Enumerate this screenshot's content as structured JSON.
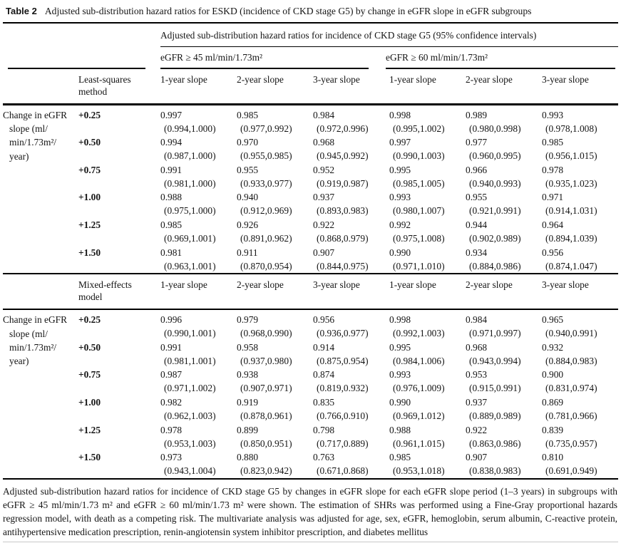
{
  "caption": {
    "label": "Table 2",
    "title": "Adjusted sub-distribution hazard ratios for ESKD (incidence of CKD stage G5) by change in eGFR slope in eGFR subgroups"
  },
  "spanner": "Adjusted sub-distribution hazard ratios for incidence of CKD stage G5 (95% confidence intervals)",
  "groups": [
    {
      "label": "eGFR ≥ 45 ml/min/1.73m²"
    },
    {
      "label": "eGFR ≥ 60 ml/min/1.73m²"
    }
  ],
  "row_label_lines": [
    "Change in eGFR",
    "slope (ml/",
    "min/1.73m²/",
    "year)"
  ],
  "sections": [
    {
      "method": "Least-squares method",
      "slope_headers": [
        "1-year slope",
        "2-year slope",
        "3-year slope",
        "1-year slope",
        "2-year slope",
        "3-year slope"
      ],
      "rows": [
        {
          "slope": "+0.25",
          "cells": [
            [
              "0.997",
              "(0.994,1.000)"
            ],
            [
              "0.985",
              "(0.977,0.992)"
            ],
            [
              "0.984",
              "(0.972,0.996)"
            ],
            [
              "0.998",
              "(0.995,1.002)"
            ],
            [
              "0.989",
              "(0.980,0.998)"
            ],
            [
              "0.993",
              "(0.978,1.008)"
            ]
          ]
        },
        {
          "slope": "+0.50",
          "cells": [
            [
              "0.994",
              "(0.987,1.000)"
            ],
            [
              "0.970",
              "(0.955,0.985)"
            ],
            [
              "0.968",
              "(0.945,0.992)"
            ],
            [
              "0.997",
              "(0.990,1.003)"
            ],
            [
              "0.977",
              "(0.960,0.995)"
            ],
            [
              "0.985",
              "(0.956,1.015)"
            ]
          ]
        },
        {
          "slope": "+0.75",
          "cells": [
            [
              "0.991",
              "(0.981,1.000)"
            ],
            [
              "0.955",
              "(0.933,0.977)"
            ],
            [
              "0.952",
              "(0.919,0.987)"
            ],
            [
              "0.995",
              "(0.985,1.005)"
            ],
            [
              "0.966",
              "(0.940,0.993)"
            ],
            [
              "0.978",
              "(0.935,1.023)"
            ]
          ]
        },
        {
          "slope": "+1.00",
          "cells": [
            [
              "0.988",
              "(0.975,1.000)"
            ],
            [
              "0.940",
              "(0.912,0.969)"
            ],
            [
              "0.937",
              "(0.893,0.983)"
            ],
            [
              "0.993",
              "(0.980,1.007)"
            ],
            [
              "0.955",
              "(0.921,0.991)"
            ],
            [
              "0.971",
              "(0.914,1.031)"
            ]
          ]
        },
        {
          "slope": "+1.25",
          "cells": [
            [
              "0.985",
              "(0.969,1.001)"
            ],
            [
              "0.926",
              "(0.891,0.962)"
            ],
            [
              "0.922",
              "(0.868,0.979)"
            ],
            [
              "0.992",
              "(0.975,1.008)"
            ],
            [
              "0.944",
              "(0.902,0.989)"
            ],
            [
              "0.964",
              "(0.894,1.039)"
            ]
          ]
        },
        {
          "slope": "+1.50",
          "cells": [
            [
              "0.981",
              "(0.963,1.001)"
            ],
            [
              "0.911",
              "(0.870,0.954)"
            ],
            [
              "0.907",
              "(0.844,0.975)"
            ],
            [
              "0.990",
              "(0.971,1.010)"
            ],
            [
              "0.934",
              "(0.884,0.986)"
            ],
            [
              "0.956",
              "(0.874,1.047)"
            ]
          ]
        }
      ]
    },
    {
      "method": "Mixed-effects model",
      "slope_headers": [
        "1-year slope",
        "2-year slope",
        "3-year slope",
        "1-year slope",
        "2-year slope",
        "3-year slope"
      ],
      "rows": [
        {
          "slope": "+0.25",
          "cells": [
            [
              "0.996",
              "(0.990,1.001)"
            ],
            [
              "0.979",
              "(0.968,0.990)"
            ],
            [
              "0.956",
              "(0.936,0.977)"
            ],
            [
              "0.998",
              "(0.992,1.003)"
            ],
            [
              "0.984",
              "(0.971,0.997)"
            ],
            [
              "0.965",
              "(0.940,0.991)"
            ]
          ]
        },
        {
          "slope": "+0.50",
          "cells": [
            [
              "0.991",
              "(0.981,1.001)"
            ],
            [
              "0.958",
              "(0.937,0.980)"
            ],
            [
              "0.914",
              "(0.875,0.954)"
            ],
            [
              "0.995",
              "(0.984,1.006)"
            ],
            [
              "0.968",
              "(0.943,0.994)"
            ],
            [
              "0.932",
              "(0.884,0.983)"
            ]
          ]
        },
        {
          "slope": "+0.75",
          "cells": [
            [
              "0.987",
              "(0.971,1.002)"
            ],
            [
              "0.938",
              "(0.907,0.971)"
            ],
            [
              "0.874",
              "(0.819,0.932)"
            ],
            [
              "0.993",
              "(0.976,1.009)"
            ],
            [
              "0.953",
              "(0.915,0.991)"
            ],
            [
              "0.900",
              "(0.831,0.974)"
            ]
          ]
        },
        {
          "slope": "+1.00",
          "cells": [
            [
              "0.982",
              "(0.962,1.003)"
            ],
            [
              "0.919",
              "(0.878,0.961)"
            ],
            [
              "0.835",
              "(0.766,0.910)"
            ],
            [
              "0.990",
              "(0.969,1.012)"
            ],
            [
              "0.937",
              "(0.889,0.989)"
            ],
            [
              "0.869",
              "(0.781,0.966)"
            ]
          ]
        },
        {
          "slope": "+1.25",
          "cells": [
            [
              "0.978",
              "(0.953,1.003)"
            ],
            [
              "0.899",
              "(0.850,0.951)"
            ],
            [
              "0.798",
              "(0.717,0.889)"
            ],
            [
              "0.988",
              "(0.961,1.015)"
            ],
            [
              "0.922",
              "(0.863,0.986)"
            ],
            [
              "0.839",
              "(0.735,0.957)"
            ]
          ]
        },
        {
          "slope": "+1.50",
          "cells": [
            [
              "0.973",
              "(0.943,1.004)"
            ],
            [
              "0.880",
              "(0.823,0.942)"
            ],
            [
              "0.763",
              "(0.671,0.868)"
            ],
            [
              "0.985",
              "(0.953,1.018)"
            ],
            [
              "0.907",
              "(0.838,0.983)"
            ],
            [
              "0.810",
              "(0.691,0.949)"
            ]
          ]
        }
      ]
    }
  ],
  "footnote": "Adjusted sub-distribution hazard ratios for incidence of CKD stage G5 by changes in eGFR slope for each eGFR slope period (1–3 years) in subgroups with eGFR ≥ 45 ml/min/1.73 m² and eGFR ≥ 60 ml/min/1.73 m² were shown. The estimation of SHRs was performed using a Fine-Gray proportional hazards regression model, with death as a competing risk. The multivariate analysis was adjusted for age, sex, eGFR, hemoglobin, serum albumin, C-reactive protein, antihypertensive medication prescription, renin-angiotensin system inhibitor prescription, and diabetes mellitus"
}
